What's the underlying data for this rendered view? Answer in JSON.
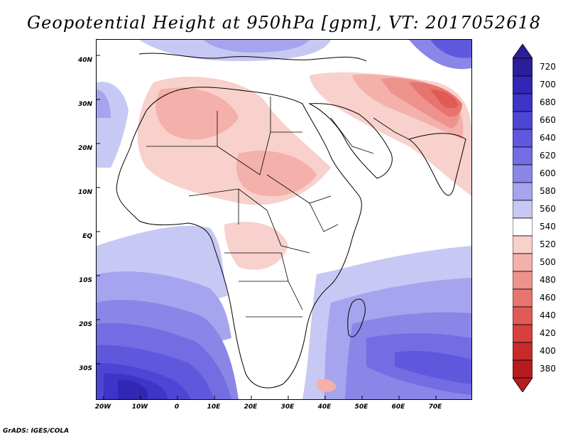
{
  "title": "Geopotential Height at 950hPa [gpm], VT: 2017052618",
  "credit": "GrADS: IGES/COLA",
  "latitude_labels": [
    "40N",
    "30N",
    "20N",
    "10N",
    "EQ",
    "10S",
    "20S",
    "30S"
  ],
  "longitude_labels": [
    "20W",
    "10W",
    "0",
    "10E",
    "20E",
    "30E",
    "40E",
    "50E",
    "60E",
    "70E"
  ],
  "colorbar": {
    "unit": "gpm",
    "levels": [
      720,
      700,
      680,
      660,
      640,
      620,
      600,
      580,
      560,
      540,
      520,
      500,
      480,
      460,
      440,
      420,
      400,
      380
    ],
    "colors": [
      "#2a1e9a",
      "#3226b4",
      "#3d34c8",
      "#4d46d4",
      "#6058dc",
      "#736ce2",
      "#8a86e8",
      "#a6a4ee",
      "#c8c8f4",
      "#ffffff",
      "#f8d0cc",
      "#f4b0aa",
      "#ee928c",
      "#e8746e",
      "#e05a56",
      "#d6403e",
      "#c82a2a",
      "#b41c20"
    ]
  }
}
